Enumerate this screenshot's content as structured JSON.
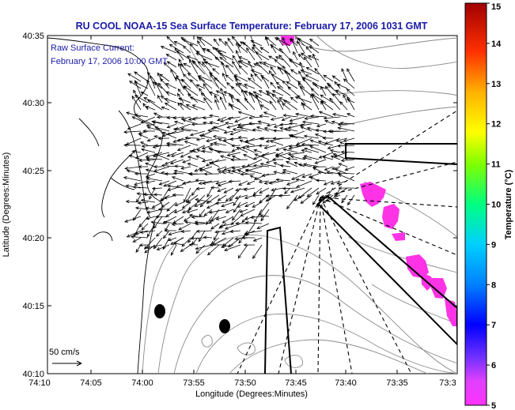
{
  "title": "RU COOL  NOAA-15  Sea Surface Temperature:  February 17, 2006 1031 GMT",
  "overlay": {
    "line1": "Raw Surface Current:",
    "line2": "February 17, 2006 10:00 GMT"
  },
  "scale_label": "50 cm/s",
  "axes": {
    "xlabel": "Longitude (Degrees:Minutes)",
    "ylabel": "Latitude (Degrees:Minutes)",
    "x_ticks": [
      "74:10",
      "74:05",
      "74:00",
      "73:55",
      "73:50",
      "73:45",
      "73:40",
      "73:35",
      "73:3"
    ],
    "y_ticks": [
      "40:35",
      "40:30",
      "40:25",
      "40:20",
      "40:15",
      "40:10"
    ]
  },
  "colorbar": {
    "label": "Temperature (°C)",
    "min": 5,
    "max": 15,
    "ticks": [
      "15",
      "14",
      "13",
      "12",
      "11",
      "10",
      "9",
      "8",
      "7",
      "6",
      "5"
    ]
  },
  "colors": {
    "title": "#1a1aa8",
    "sst_patch": "#ff33e6"
  }
}
